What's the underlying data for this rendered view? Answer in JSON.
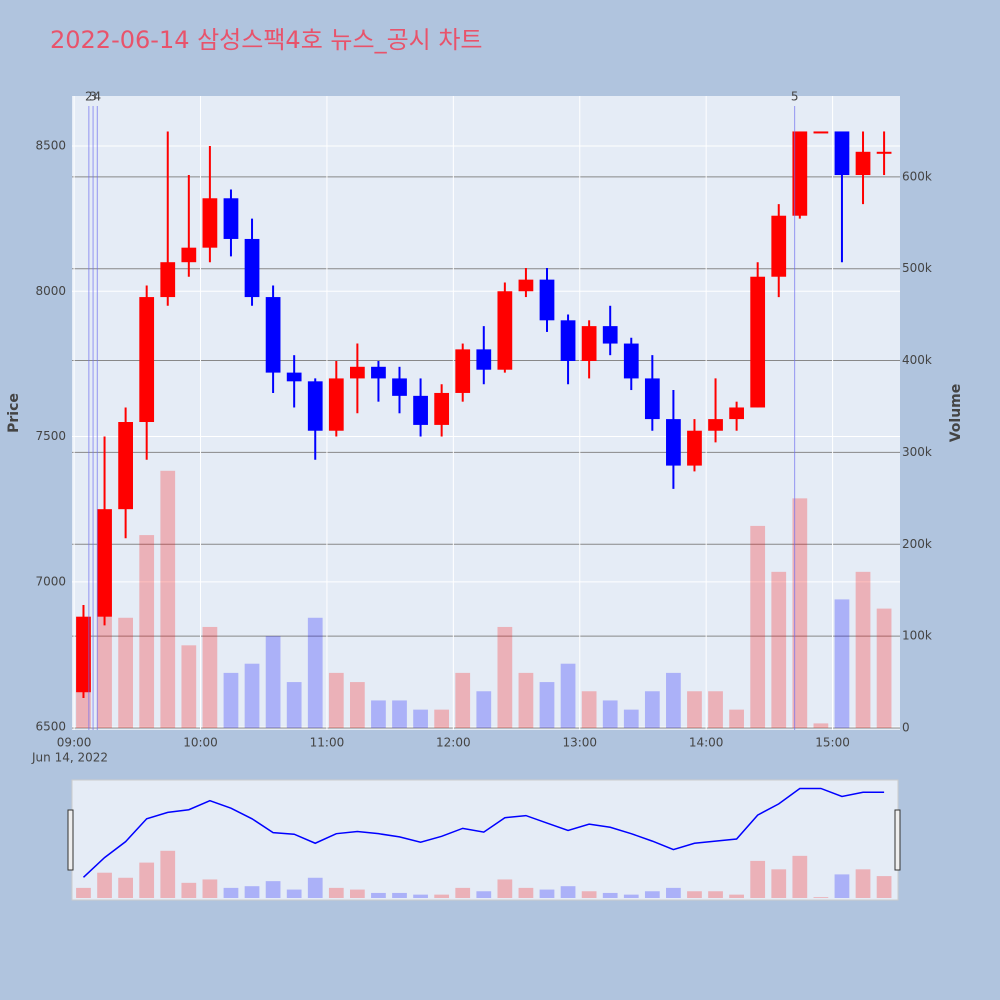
{
  "chart_data": {
    "type": "candlestick",
    "title": "2022-06-14 삼성스팩4호 뉴스_공시 차트",
    "y_label": "Price",
    "y2_label": "Volume",
    "x_sublabel": "Jun 14, 2022",
    "x": [
      "09:00",
      "09:10",
      "09:20",
      "09:30",
      "09:40",
      "09:50",
      "10:00",
      "10:10",
      "10:20",
      "10:30",
      "10:40",
      "10:50",
      "11:00",
      "11:10",
      "11:20",
      "11:30",
      "11:40",
      "11:50",
      "12:00",
      "12:10",
      "12:20",
      "12:30",
      "12:40",
      "12:50",
      "13:00",
      "13:10",
      "13:20",
      "13:30",
      "13:40",
      "13:50",
      "14:00",
      "14:10",
      "14:20",
      "14:30",
      "14:40",
      "14:50",
      "15:00",
      "15:10",
      "15:20"
    ],
    "open": [
      6620,
      6880,
      7250,
      7550,
      7980,
      8100,
      8150,
      8320,
      8180,
      7980,
      7720,
      7690,
      7520,
      7700,
      7740,
      7700,
      7640,
      7540,
      7650,
      7800,
      7730,
      8000,
      8040,
      7900,
      7760,
      7880,
      7820,
      7700,
      7560,
      7400,
      7520,
      7560,
      7600,
      8050,
      8260,
      8550,
      8550,
      8400,
      8480
    ],
    "high": [
      6920,
      7500,
      7600,
      8020,
      8550,
      8400,
      8500,
      8350,
      8250,
      8020,
      7780,
      7700,
      7760,
      7820,
      7760,
      7740,
      7700,
      7680,
      7820,
      7880,
      8030,
      8080,
      8080,
      7920,
      7900,
      7950,
      7840,
      7780,
      7660,
      7560,
      7700,
      7620,
      8100,
      8300,
      8550,
      8550,
      8550,
      8550,
      8550
    ],
    "low": [
      6600,
      6850,
      7150,
      7420,
      7950,
      8050,
      8100,
      8120,
      7950,
      7650,
      7600,
      7420,
      7500,
      7580,
      7620,
      7580,
      7500,
      7500,
      7620,
      7680,
      7720,
      7980,
      7860,
      7680,
      7700,
      7780,
      7660,
      7520,
      7320,
      7380,
      7480,
      7520,
      7600,
      7980,
      8250,
      8550,
      8100,
      8300,
      8400
    ],
    "close": [
      6880,
      7250,
      7550,
      7980,
      8100,
      8150,
      8320,
      8180,
      7980,
      7720,
      7690,
      7520,
      7700,
      7740,
      7700,
      7640,
      7540,
      7650,
      7800,
      7730,
      8000,
      8040,
      7900,
      7760,
      7880,
      7820,
      7700,
      7560,
      7400,
      7520,
      7560,
      7600,
      8050,
      8260,
      8550,
      8550,
      8400,
      8480,
      8480
    ],
    "volume": [
      60000,
      150000,
      120000,
      210000,
      280000,
      90000,
      110000,
      60000,
      70000,
      100000,
      50000,
      120000,
      60000,
      50000,
      30000,
      30000,
      20000,
      20000,
      60000,
      40000,
      110000,
      60000,
      50000,
      70000,
      40000,
      30000,
      20000,
      40000,
      60000,
      40000,
      40000,
      20000,
      220000,
      170000,
      250000,
      5000,
      140000,
      170000,
      130000
    ],
    "up_color": "#ff0000",
    "down_color": "#0000ff",
    "xlim": [
      "08:59",
      "15:32"
    ],
    "xticks": [
      "09:00",
      "10:00",
      "11:00",
      "12:00",
      "13:00",
      "14:00",
      "15:00"
    ],
    "ylim": [
      6490,
      8672
    ],
    "yticks": [
      6500,
      7000,
      7500,
      8000,
      8500
    ],
    "y2lim": [
      0,
      688000
    ],
    "y2ticks": [
      0,
      {
        "value": 100000,
        "label": "100k"
      },
      {
        "value": 200000,
        "label": "200k"
      },
      {
        "value": 300000,
        "label": "300k"
      },
      {
        "value": 400000,
        "label": "400k"
      },
      {
        "value": 500000,
        "label": "500k"
      },
      {
        "value": 600000,
        "label": "600k"
      }
    ],
    "annotations": [
      {
        "x": "09:07",
        "label": "2"
      },
      {
        "x": "09:09",
        "label": "3"
      },
      {
        "x": "09:11",
        "label": "4"
      },
      {
        "x": "14:42",
        "label": "5"
      }
    ],
    "grid": true,
    "rangeslider": true
  }
}
